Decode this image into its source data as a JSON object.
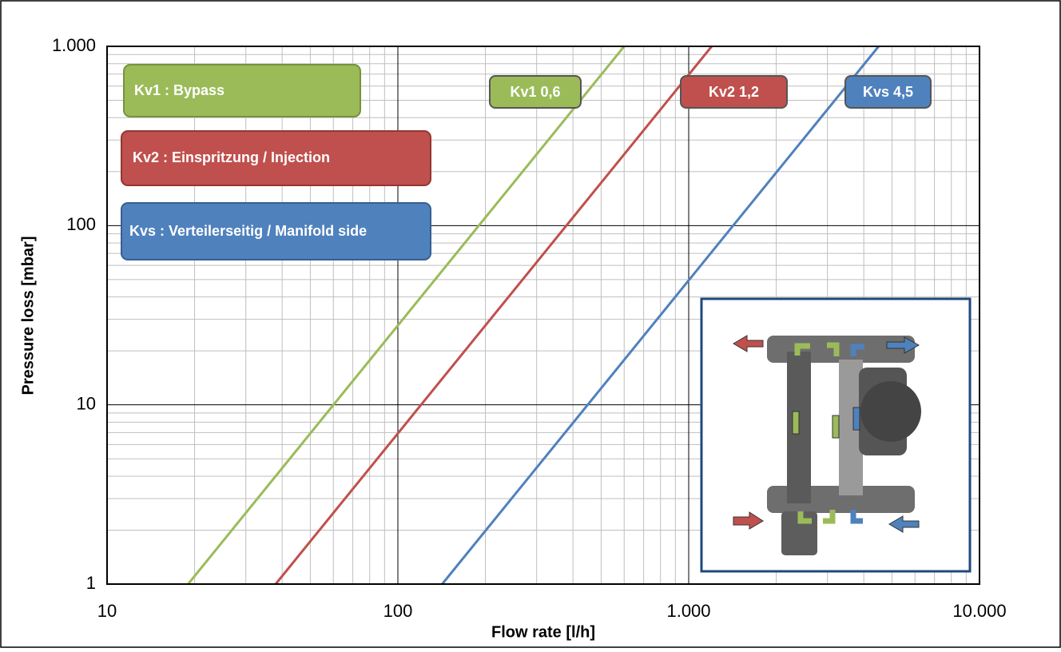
{
  "chart_data": {
    "type": "line",
    "xlabel": "Flow rate [l/h]",
    "ylabel": "Pressure loss [mbar]",
    "xscale": "log",
    "yscale": "log",
    "grid": true,
    "xlim": [
      10,
      10000
    ],
    "ylim": [
      1,
      1000
    ],
    "xticks": [
      10,
      100,
      {
        "value": 1000,
        "label": "1.000"
      },
      {
        "value": 10000,
        "label": "10.000"
      }
    ],
    "yticks": [
      1,
      10,
      100,
      {
        "value": 1000,
        "label": "1.000"
      }
    ],
    "series": [
      {
        "name": "Kv1 0,6",
        "color": "#9bbb59",
        "x": [
          19,
          600
        ],
        "values": [
          1,
          1000
        ]
      },
      {
        "name": "Kv2 1,2",
        "color": "#c0504d",
        "x": [
          38,
          1200
        ],
        "values": [
          1,
          1000
        ]
      },
      {
        "name": "Kvs 4,5",
        "color": "#4f81bd",
        "x": [
          142,
          4500
        ],
        "values": [
          1,
          1000
        ]
      }
    ],
    "annotations": [
      "Kv1 : Bypass",
      "Kv2 : Einspritzung / Injection",
      "Kvs : Verteilerseitig / Manifold side"
    ]
  }
}
